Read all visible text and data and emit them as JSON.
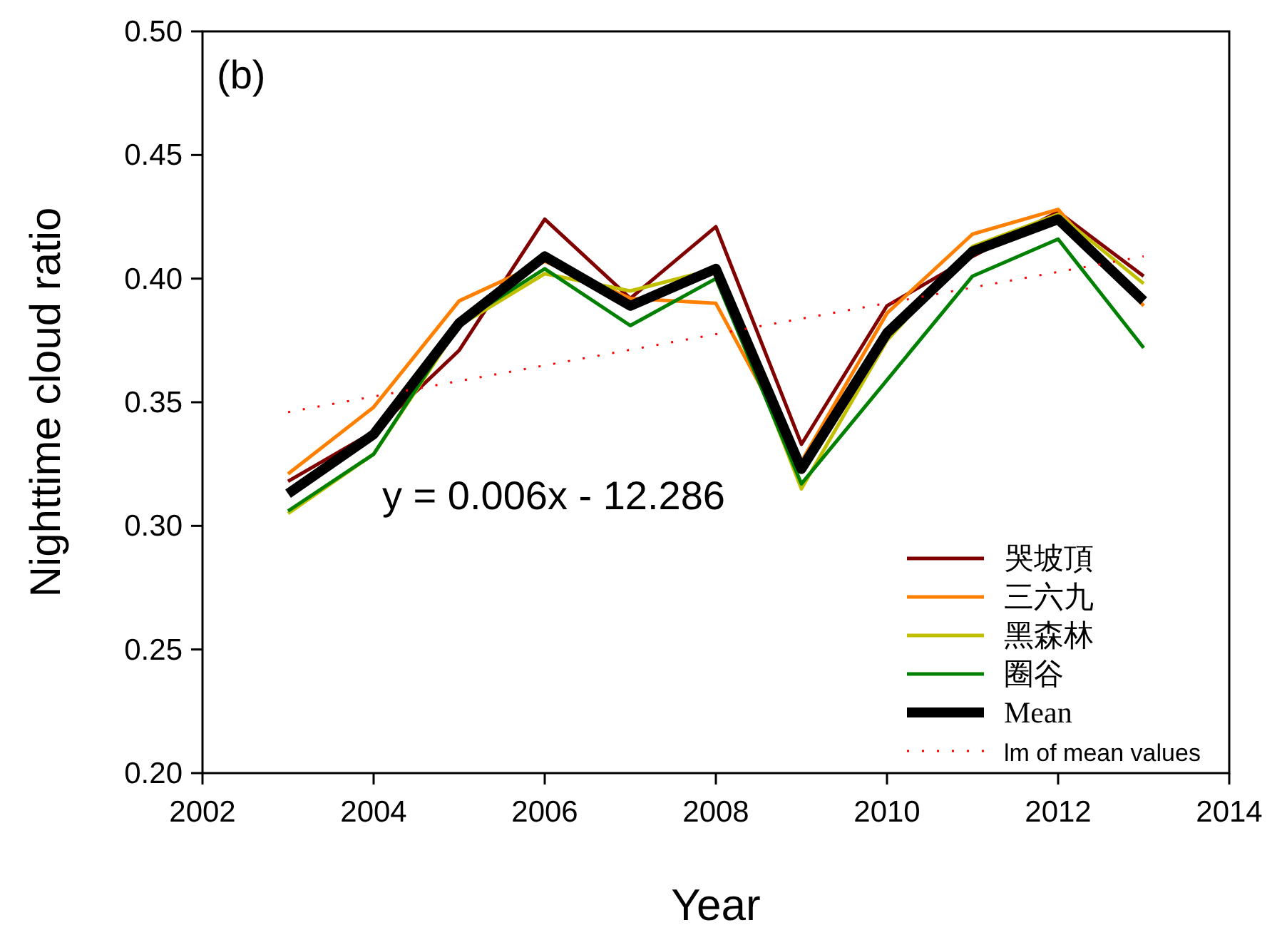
{
  "chart_data": {
    "type": "line",
    "xlabel": "Year",
    "ylabel": "Nighttime cloud ratio",
    "annotations": [
      "(b)",
      "y = 0.006x - 12.286"
    ],
    "x": [
      2003,
      2004,
      2005,
      2006,
      2007,
      2008,
      2009,
      2010,
      2011,
      2012,
      2013
    ],
    "xlim": [
      2002,
      2014
    ],
    "xticks": [
      2002,
      2004,
      2006,
      2008,
      2010,
      2012,
      2014
    ],
    "ylim": [
      0.2,
      0.5
    ],
    "yticks": [
      {
        "value": 0.2,
        "label": "0.20"
      },
      0.25,
      {
        "value": 0.3,
        "label": "0.30"
      },
      0.35,
      {
        "value": 0.4,
        "label": "0.40"
      },
      0.45,
      {
        "value": 0.5,
        "label": "0.50"
      }
    ],
    "grid": false,
    "legend": "bottom right",
    "line_style": "solid",
    "marker": "none",
    "series": [
      {
        "name": "哭坡頂",
        "color": "#800000",
        "values": [
          0.318,
          0.338,
          0.371,
          0.424,
          0.392,
          0.421,
          0.333,
          0.389,
          0.409,
          0.427,
          0.401
        ]
      },
      {
        "name": "三六九",
        "color": "#ff8000",
        "values": [
          0.321,
          0.348,
          0.391,
          0.407,
          0.392,
          0.39,
          0.326,
          0.386,
          0.418,
          0.428,
          0.389
        ]
      },
      {
        "name": "黑森林",
        "color": "#c0c000",
        "values": [
          0.305,
          0.329,
          0.381,
          0.402,
          0.395,
          0.404,
          0.315,
          0.375,
          0.413,
          0.426,
          0.398
        ]
      },
      {
        "name": "圈谷",
        "color": "#008000",
        "values": [
          0.306,
          0.329,
          0.382,
          0.404,
          0.381,
          0.4,
          0.317,
          0.359,
          0.401,
          0.416,
          0.372
        ]
      },
      {
        "name": "Mean",
        "color": "#000000",
        "values": [
          0.313,
          0.337,
          0.382,
          0.409,
          0.389,
          0.404,
          0.323,
          0.378,
          0.411,
          0.424,
          0.391
        ]
      },
      {
        "name": "lm of mean values",
        "color": "#ff0000",
        "line_style": "dotted",
        "x": [
          2003,
          2013
        ],
        "values": [
          0.346,
          0.409
        ]
      }
    ]
  }
}
